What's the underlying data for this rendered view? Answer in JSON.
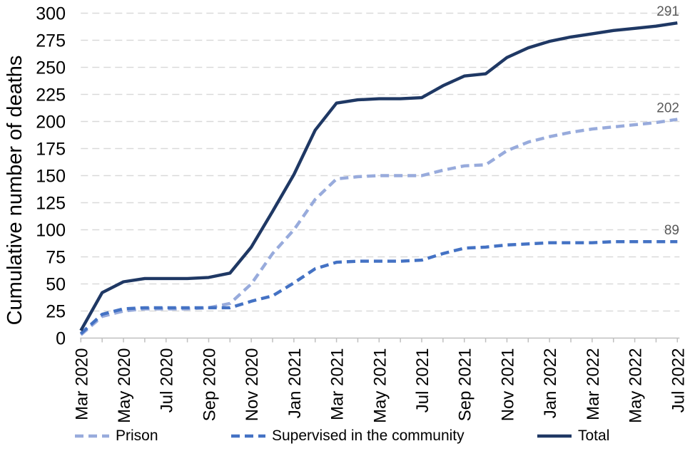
{
  "chart_data": {
    "type": "line",
    "title": "",
    "xlabel": "",
    "ylabel": "Cumulative number of deaths",
    "ylim": [
      0,
      300
    ],
    "ytick_step": 25,
    "x_label_interval": 2,
    "grid": "horizontal-dashed",
    "legend_position": "bottom",
    "x": [
      "Mar 2020",
      "Apr 2020",
      "May 2020",
      "Jun 2020",
      "Jul 2020",
      "Aug 2020",
      "Sep 2020",
      "Oct 2020",
      "Nov 2020",
      "Dec 2020",
      "Jan 2021",
      "Feb 2021",
      "Mar 2021",
      "Apr 2021",
      "May 2021",
      "Jun 2021",
      "Jul 2021",
      "Aug 2021",
      "Sep 2021",
      "Oct 2021",
      "Nov 2021",
      "Dec 2021",
      "Jan 2022",
      "Feb 2022",
      "Mar 2022",
      "Apr 2022",
      "May 2022",
      "Jun 2022",
      "Jul 2022"
    ],
    "series": [
      {
        "name": "Prison",
        "color": "#98abdc",
        "dash": true,
        "end_label": "202",
        "values": [
          3,
          20,
          25,
          27,
          27,
          27,
          28,
          32,
          50,
          78,
          100,
          128,
          147,
          149,
          150,
          150,
          150,
          155,
          159,
          160,
          173,
          181,
          186,
          190,
          193,
          195,
          197,
          199,
          202
        ]
      },
      {
        "name": "Supervised in the community",
        "color": "#4472c4",
        "dash": true,
        "end_label": "89",
        "values": [
          4,
          22,
          27,
          28,
          28,
          28,
          28,
          28,
          34,
          39,
          51,
          64,
          70,
          71,
          71,
          71,
          72,
          78,
          83,
          84,
          86,
          87,
          88,
          88,
          88,
          89,
          89,
          89,
          89
        ]
      },
      {
        "name": "Total",
        "color": "#1f3864",
        "dash": false,
        "end_label": "291",
        "values": [
          7,
          42,
          52,
          55,
          55,
          55,
          56,
          60,
          84,
          117,
          151,
          192,
          217,
          220,
          221,
          221,
          222,
          233,
          242,
          244,
          259,
          268,
          274,
          278,
          281,
          284,
          286,
          288,
          291
        ]
      }
    ],
    "end_label_color": "#595959",
    "axis_color": "#bfbfbf",
    "gridline_color": "#d9d9d9"
  }
}
